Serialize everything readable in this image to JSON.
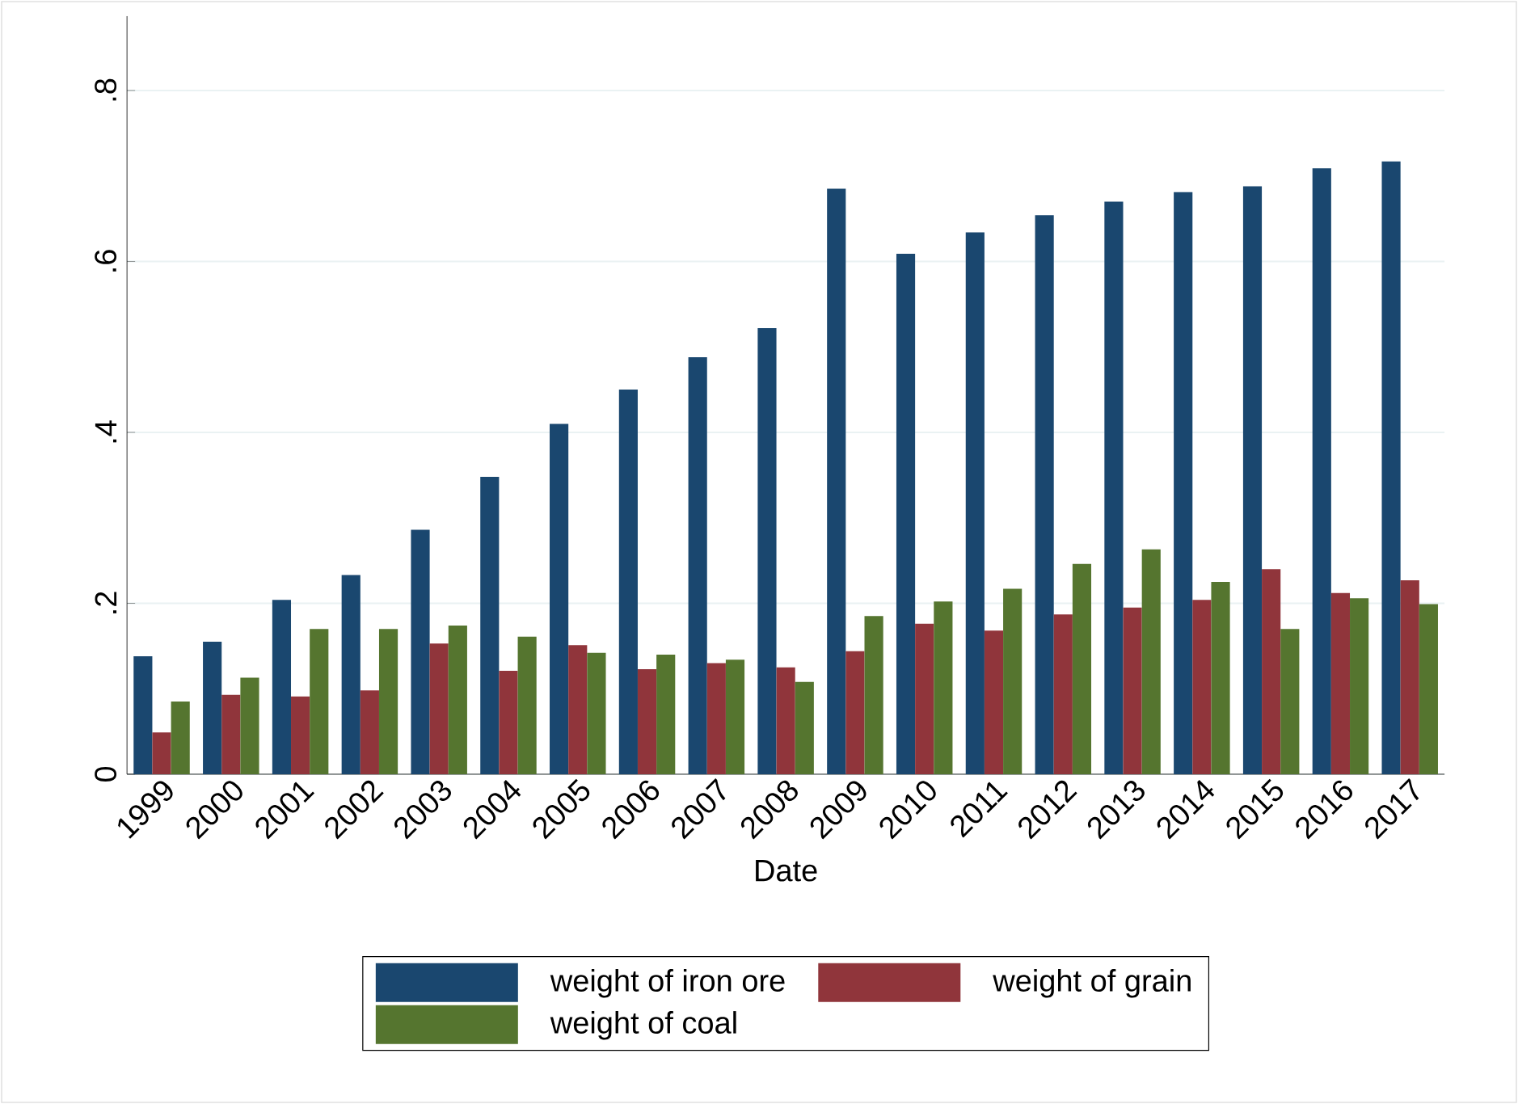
{
  "chart_data": {
    "type": "bar",
    "xlabel": "Date",
    "categories": [
      "1999",
      "2000",
      "2001",
      "2002",
      "2003",
      "2004",
      "2005",
      "2006",
      "2007",
      "2008",
      "2009",
      "2010",
      "2011",
      "2012",
      "2013",
      "2014",
      "2015",
      "2016",
      "2017"
    ],
    "series": [
      {
        "name": "weight of iron ore",
        "color": "#1a476f",
        "values": [
          0.138,
          0.155,
          0.204,
          0.233,
          0.286,
          0.348,
          0.41,
          0.45,
          0.488,
          0.522,
          0.685,
          0.609,
          0.634,
          0.654,
          0.67,
          0.681,
          0.688,
          0.709,
          0.717
        ]
      },
      {
        "name": "weight of grain",
        "color": "#90353b",
        "values": [
          0.049,
          0.093,
          0.091,
          0.098,
          0.153,
          0.121,
          0.151,
          0.123,
          0.13,
          0.125,
          0.144,
          0.176,
          0.168,
          0.187,
          0.195,
          0.204,
          0.24,
          0.212,
          0.227
        ]
      },
      {
        "name": "weight of coal",
        "color": "#55752f",
        "values": [
          0.085,
          0.113,
          0.17,
          0.17,
          0.174,
          0.161,
          0.142,
          0.14,
          0.134,
          0.108,
          0.185,
          0.202,
          0.217,
          0.246,
          0.263,
          0.225,
          0.17,
          0.206,
          0.199
        ]
      }
    ],
    "ylim": [
      0,
      0.887
    ],
    "yticks": [
      0,
      {
        "value": 0.2,
        "label": ".2"
      },
      {
        "value": 0.4,
        "label": ".4"
      },
      {
        "value": 0.6,
        "label": ".6"
      },
      {
        "value": 0.8,
        "label": ".8"
      }
    ],
    "grid": "y",
    "legend": "bottom"
  }
}
